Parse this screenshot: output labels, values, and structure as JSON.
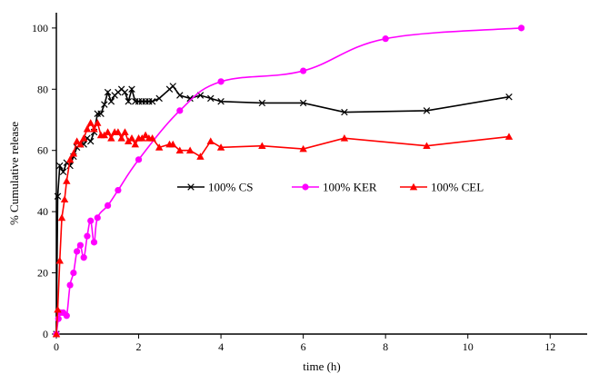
{
  "chart_data": {
    "type": "line",
    "title": "",
    "xlabel": "time (h)",
    "ylabel": "% Cumulative release",
    "xlim": [
      0,
      12.9
    ],
    "ylim": [
      0,
      105
    ],
    "xticks": [
      0,
      2,
      4,
      6,
      8,
      10,
      12
    ],
    "yticks": [
      0,
      20,
      40,
      60,
      80,
      100
    ],
    "grid": false,
    "legend_position": "center-right",
    "series": [
      {
        "name": "100% CS",
        "color": "#000000",
        "marker": "x",
        "x": [
          0,
          0.033,
          0.083,
          0.167,
          0.25,
          0.333,
          0.417,
          0.5,
          0.583,
          0.667,
          0.75,
          0.833,
          0.917,
          1,
          1.083,
          1.167,
          1.25,
          1.333,
          1.417,
          1.5,
          1.583,
          1.667,
          1.75,
          1.833,
          1.917,
          2,
          2.083,
          2.167,
          2.25,
          2.333,
          2.5,
          2.75,
          2.833,
          3,
          3.25,
          3.5,
          3.75,
          4,
          5,
          6,
          7,
          9,
          11
        ],
        "y": [
          0,
          45,
          55,
          53,
          56,
          55,
          58,
          61,
          62,
          62,
          64,
          63,
          66,
          72,
          72,
          75,
          79,
          76,
          78,
          79,
          80,
          79,
          76,
          80,
          76,
          76,
          76,
          76,
          76,
          76,
          77,
          80,
          81,
          78,
          77,
          78,
          77,
          76,
          75.5,
          75.5,
          72.5,
          73,
          77.5
        ]
      },
      {
        "name": "100% KER",
        "color": "#ff00ff",
        "marker": "o",
        "x": [
          0,
          0.05,
          0.1,
          0.167,
          0.25,
          0.333,
          0.417,
          0.5,
          0.583,
          0.667,
          0.75,
          0.833,
          0.917,
          1,
          1.25,
          1.5,
          2,
          3,
          4,
          6,
          8,
          11.3
        ],
        "y": [
          0,
          5,
          7,
          7,
          6,
          16,
          20,
          27,
          29,
          25,
          32,
          37,
          30,
          38,
          42,
          47,
          57,
          73,
          82.5,
          86,
          96.5,
          100
        ]
      },
      {
        "name": "100% CEL",
        "color": "#ff0000",
        "marker": "triangle",
        "x": [
          0,
          0.033,
          0.083,
          0.133,
          0.2,
          0.25,
          0.333,
          0.417,
          0.5,
          0.583,
          0.667,
          0.75,
          0.833,
          0.917,
          1,
          1.083,
          1.167,
          1.25,
          1.333,
          1.417,
          1.5,
          1.583,
          1.667,
          1.75,
          1.833,
          1.917,
          2,
          2.083,
          2.167,
          2.25,
          2.333,
          2.5,
          2.75,
          2.833,
          3,
          3.25,
          3.5,
          3.75,
          4,
          5,
          6,
          7,
          9,
          11
        ],
        "y": [
          0,
          8,
          24,
          38,
          44,
          50,
          57,
          59,
          63,
          62,
          64,
          67,
          69,
          67,
          69,
          65,
          65,
          66,
          64,
          66,
          66,
          64,
          66,
          63,
          64,
          62,
          64,
          64,
          65,
          64,
          64,
          61,
          62,
          62,
          60,
          60,
          58,
          63,
          61,
          61.5,
          60.5,
          64,
          61.5,
          64.5
        ]
      }
    ]
  }
}
